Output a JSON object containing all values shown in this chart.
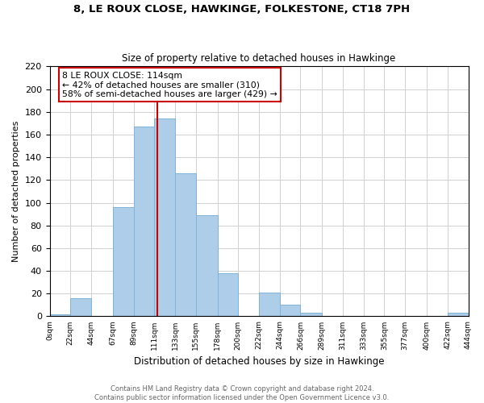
{
  "title": "8, LE ROUX CLOSE, HAWKINGE, FOLKESTONE, CT18 7PH",
  "subtitle": "Size of property relative to detached houses in Hawkinge",
  "xlabel": "Distribution of detached houses by size in Hawkinge",
  "ylabel": "Number of detached properties",
  "footnote1": "Contains HM Land Registry data © Crown copyright and database right 2024.",
  "footnote2": "Contains public sector information licensed under the Open Government Licence v3.0.",
  "bar_edges": [
    0,
    22,
    44,
    67,
    89,
    111,
    133,
    155,
    178,
    200,
    222,
    244,
    266,
    289,
    311,
    333,
    355,
    377,
    400,
    422,
    444
  ],
  "bar_heights": [
    2,
    16,
    0,
    96,
    167,
    174,
    126,
    89,
    38,
    0,
    21,
    10,
    3,
    0,
    0,
    0,
    0,
    0,
    0,
    3
  ],
  "tick_labels": [
    "0sqm",
    "22sqm",
    "44sqm",
    "67sqm",
    "89sqm",
    "111sqm",
    "133sqm",
    "155sqm",
    "178sqm",
    "200sqm",
    "222sqm",
    "244sqm",
    "266sqm",
    "289sqm",
    "311sqm",
    "333sqm",
    "355sqm",
    "377sqm",
    "400sqm",
    "422sqm",
    "444sqm"
  ],
  "bar_color": "#aecde8",
  "bar_edge_color": "#7fb3d9",
  "property_line_x": 114,
  "property_line_color": "#cc0000",
  "annotation_title": "8 LE ROUX CLOSE: 114sqm",
  "annotation_line1": "← 42% of detached houses are smaller (310)",
  "annotation_line2": "58% of semi-detached houses are larger (429) →",
  "ylim": [
    0,
    220
  ],
  "yticks": [
    0,
    20,
    40,
    60,
    80,
    100,
    120,
    140,
    160,
    180,
    200,
    220
  ],
  "background_color": "#ffffff",
  "grid_color": "#d0d0d0"
}
